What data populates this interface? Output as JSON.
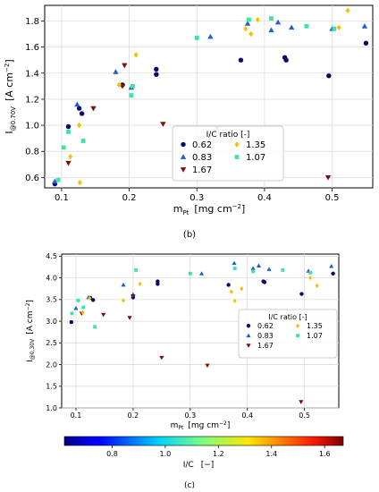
{
  "chart_data": [
    {
      "type": "scatter",
      "panel_label": "(b)",
      "xlabel": "m",
      "xlabel_sub": "Pt",
      "xlabel_units": "[mg cm",
      "xlabel_units_exp": "−2",
      "xlabel_units_close": "]",
      "ylabel": "I",
      "ylabel_sub": "@0.70V",
      "ylabel_units": "[A cm",
      "ylabel_units_exp": "−2",
      "ylabel_units_close": "]",
      "xlim": [
        0.075,
        0.56
      ],
      "ylim": [
        0.52,
        1.92
      ],
      "xticks": [
        0.1,
        0.2,
        0.3,
        0.4,
        0.5
      ],
      "yticks": [
        0.6,
        0.8,
        1.0,
        1.2,
        1.4,
        1.6,
        1.8
      ],
      "xtick_labels": [
        "0.1",
        "0.2",
        "0.3",
        "0.4",
        "0.5"
      ],
      "ytick_labels": [
        "0.6",
        "0.8",
        "1.0",
        "1.2",
        "1.4",
        "1.6",
        "1.8"
      ],
      "grid": true,
      "legend": {
        "title": "I/C ratio [-]",
        "placement": "bottom-center",
        "columns": 2,
        "order": [
          "0.62",
          "0.83",
          "1.67",
          "1.35",
          "1.07"
        ]
      },
      "series": [
        {
          "name": "0.62",
          "marker": "circle",
          "color": "#0a0a6e",
          "points": [
            [
              0.09,
              0.55
            ],
            [
              0.11,
              0.99
            ],
            [
              0.126,
              1.13
            ],
            [
              0.13,
              1.09
            ],
            [
              0.19,
              1.31
            ],
            [
              0.24,
              1.43
            ],
            [
              0.24,
              1.39
            ],
            [
              0.365,
              1.5
            ],
            [
              0.43,
              1.52
            ],
            [
              0.432,
              1.5
            ],
            [
              0.495,
              1.38
            ],
            [
              0.55,
              1.63
            ]
          ]
        },
        {
          "name": "0.83",
          "marker": "triangle",
          "color": "#1f5fcf",
          "points": [
            [
              0.09,
              0.57
            ],
            [
              0.123,
              1.16
            ],
            [
              0.18,
              1.41
            ],
            [
              0.203,
              1.29
            ],
            [
              0.32,
              1.68
            ],
            [
              0.375,
              1.78
            ],
            [
              0.42,
              1.79
            ],
            [
              0.41,
              1.73
            ],
            [
              0.44,
              1.75
            ],
            [
              0.5,
              1.74
            ],
            [
              0.548,
              1.76
            ]
          ]
        },
        {
          "name": "1.67",
          "marker": "triangle-down",
          "color": "#7a1010",
          "points": [
            [
              0.11,
              0.71
            ],
            [
              0.147,
              1.13
            ],
            [
              0.19,
              1.3
            ],
            [
              0.193,
              1.46
            ],
            [
              0.25,
              1.01
            ],
            [
              0.33,
              0.98
            ],
            [
              0.494,
              0.6
            ]
          ]
        },
        {
          "name": "1.35",
          "marker": "diamond",
          "color": "#f2c200",
          "points": [
            [
              0.113,
              0.76
            ],
            [
              0.126,
              1.0
            ],
            [
              0.127,
              0.56
            ],
            [
              0.185,
              1.31
            ],
            [
              0.21,
              1.54
            ],
            [
              0.372,
              1.74
            ],
            [
              0.38,
              1.7
            ],
            [
              0.39,
              1.81
            ],
            [
              0.51,
              1.75
            ],
            [
              0.523,
              1.88
            ]
          ]
        },
        {
          "name": "1.07",
          "marker": "square",
          "color": "#40e0b0",
          "points": [
            [
              0.095,
              0.58
            ],
            [
              0.103,
              0.83
            ],
            [
              0.11,
              0.95
            ],
            [
              0.132,
              0.88
            ],
            [
              0.203,
              1.23
            ],
            [
              0.205,
              1.3
            ],
            [
              0.3,
              1.67
            ],
            [
              0.377,
              1.81
            ],
            [
              0.41,
              1.82
            ],
            [
              0.462,
              1.76
            ],
            [
              0.503,
              1.74
            ]
          ]
        }
      ]
    },
    {
      "type": "scatter",
      "panel_label": "(c)",
      "xlabel": "m",
      "xlabel_sub": "Pt",
      "xlabel_units": "[mg cm",
      "xlabel_units_exp": "−2",
      "xlabel_units_close": "]",
      "ylabel": "I",
      "ylabel_sub": "@0.30V",
      "ylabel_units": "[A cm",
      "ylabel_units_exp": "−2",
      "ylabel_units_close": "]",
      "xlim": [
        0.075,
        0.56
      ],
      "ylim": [
        1.0,
        4.55
      ],
      "xticks": [
        0.1,
        0.2,
        0.3,
        0.4,
        0.5
      ],
      "yticks": [
        1.0,
        1.5,
        2.0,
        2.5,
        3.0,
        3.5,
        4.0,
        4.5
      ],
      "xtick_labels": [
        "0.1",
        "0.2",
        "0.3",
        "0.4",
        "0.5"
      ],
      "ytick_labels": [
        "1.0",
        "1.5",
        "2.0",
        "2.5",
        "3.0",
        "3.5",
        "4.0",
        "4.5"
      ],
      "grid": true,
      "legend": {
        "title": "I/C ratio [-]",
        "placement": "center-right",
        "columns": 2,
        "order": [
          "0.62",
          "0.83",
          "1.67",
          "1.35",
          "1.07"
        ]
      },
      "series": [
        {
          "name": "0.62",
          "marker": "circle",
          "color": "#0a0a6e",
          "points": [
            [
              0.092,
              2.98
            ],
            [
              0.125,
              3.54
            ],
            [
              0.13,
              3.49
            ],
            [
              0.2,
              3.55
            ],
            [
              0.243,
              3.92
            ],
            [
              0.243,
              3.86
            ],
            [
              0.367,
              3.84
            ],
            [
              0.428,
              3.92
            ],
            [
              0.43,
              3.9
            ],
            [
              0.495,
              3.63
            ],
            [
              0.55,
              4.1
            ]
          ]
        },
        {
          "name": "0.83",
          "marker": "triangle",
          "color": "#1f5fcf",
          "points": [
            [
              0.1,
              3.3
            ],
            [
              0.122,
              3.55
            ],
            [
              0.183,
              3.84
            ],
            [
              0.2,
              3.62
            ],
            [
              0.32,
              4.1
            ],
            [
              0.377,
              4.34
            ],
            [
              0.41,
              4.22
            ],
            [
              0.42,
              4.28
            ],
            [
              0.438,
              4.2
            ],
            [
              0.507,
              4.16
            ],
            [
              0.547,
              4.27
            ]
          ]
        },
        {
          "name": "1.67",
          "marker": "triangle-down",
          "color": "#7a1010",
          "points": [
            [
              0.11,
              3.18
            ],
            [
              0.148,
              3.15
            ],
            [
              0.194,
              3.08
            ],
            [
              0.2,
              3.58
            ],
            [
              0.25,
              2.16
            ],
            [
              0.33,
              1.98
            ],
            [
              0.494,
              1.14
            ]
          ]
        },
        {
          "name": "1.35",
          "marker": "diamond",
          "color": "#f2c200",
          "points": [
            [
              0.112,
              3.2
            ],
            [
              0.124,
              3.53
            ],
            [
              0.183,
              3.48
            ],
            [
              0.212,
              3.86
            ],
            [
              0.372,
              3.68
            ],
            [
              0.378,
              3.47
            ],
            [
              0.39,
              3.75
            ],
            [
              0.51,
              4.0
            ],
            [
              0.522,
              3.82
            ]
          ]
        },
        {
          "name": "1.07",
          "marker": "square",
          "color": "#40e0b0",
          "points": [
            [
              0.093,
              3.18
            ],
            [
              0.104,
              3.48
            ],
            [
              0.113,
              3.32
            ],
            [
              0.133,
              2.87
            ],
            [
              0.205,
              4.18
            ],
            [
              0.3,
              4.1
            ],
            [
              0.378,
              4.22
            ],
            [
              0.41,
              4.15
            ],
            [
              0.462,
              4.18
            ],
            [
              0.51,
              4.12
            ]
          ]
        }
      ]
    }
  ],
  "colorbar": {
    "label": "I/C",
    "label_units": "[−]",
    "range": [
      0.62,
      1.67
    ],
    "ticks": [
      0.8,
      1.0,
      1.2,
      1.4,
      1.6
    ],
    "tick_labels": [
      "0.8",
      "1.0",
      "1.2",
      "1.4",
      "1.6"
    ],
    "colormap": "jet"
  }
}
